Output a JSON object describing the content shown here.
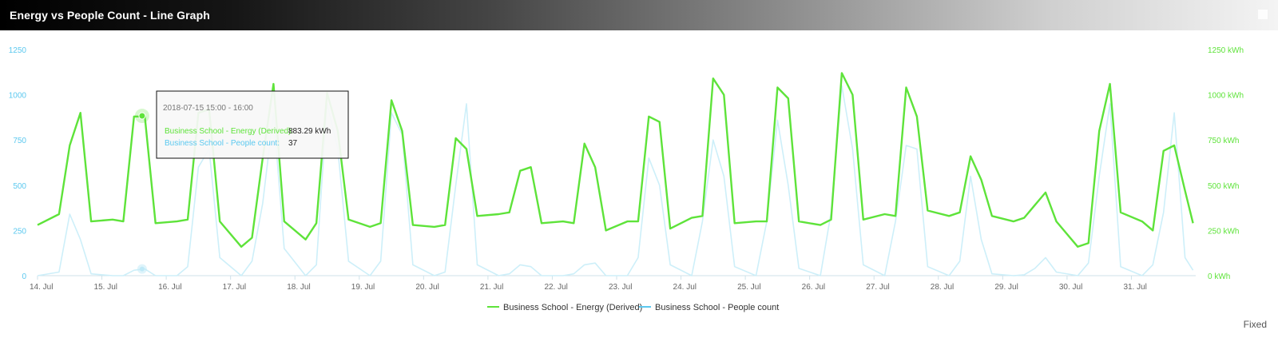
{
  "header": {
    "title": "Energy vs People Count - Line Graph"
  },
  "footer": {
    "mode_label": "Fixed"
  },
  "tooltip": {
    "time": "2018-07-15 15:00 - 16:00",
    "rows": [
      {
        "label": "Business School - Energy (Derived):",
        "value": "883.29 kWh",
        "color": "#5ee33a"
      },
      {
        "label": "Business School - People count:",
        "value": "37",
        "color": "#5bc8ef"
      }
    ]
  },
  "chart_data": {
    "type": "line",
    "x_axis": {
      "range": [
        "2018-07-14 00:00",
        "2018-08-01 00:00"
      ],
      "tick_labels": [
        "14. Jul",
        "15. Jul",
        "16. Jul",
        "17. Jul",
        "18. Jul",
        "19. Jul",
        "20. Jul",
        "21. Jul",
        "22. Jul",
        "23. Jul",
        "24. Jul",
        "25. Jul",
        "26. Jul",
        "27. Jul",
        "28. Jul",
        "29. Jul",
        "30. Jul",
        "31. Jul"
      ]
    },
    "y_axis_left": {
      "range": [
        0,
        1250
      ],
      "tick_labels": [
        "0",
        "250",
        "500",
        "750",
        "1000",
        "1250"
      ],
      "color": "#5bc8ef"
    },
    "y_axis_right": {
      "range": [
        0,
        1250
      ],
      "tick_labels": [
        "0 kWh",
        "250 kWh",
        "500 kWh",
        "750 kWh",
        "1000 kWh",
        "1250 kWh"
      ],
      "color": "#5ee33a"
    },
    "grid": false,
    "legend_position": "bottom-center",
    "series": [
      {
        "name": "Business School - Energy (Derived)",
        "color": "#5ee33a",
        "axis": "right",
        "unit": "kWh",
        "x": [
          "07-14 00:00",
          "07-14 08:00",
          "07-14 12:00",
          "07-14 16:00",
          "07-14 20:00",
          "07-15 04:00",
          "07-15 08:00",
          "07-15 12:00",
          "07-15 16:00",
          "07-15 20:00",
          "07-16 04:00",
          "07-16 08:00",
          "07-16 12:00",
          "07-16 16:00",
          "07-16 20:00",
          "07-17 04:00",
          "07-17 08:00",
          "07-17 12:00",
          "07-17 16:00",
          "07-17 20:00",
          "07-18 04:00",
          "07-18 08:00",
          "07-18 12:00",
          "07-18 16:00",
          "07-18 20:00",
          "07-19 04:00",
          "07-19 08:00",
          "07-19 12:00",
          "07-19 16:00",
          "07-19 20:00",
          "07-20 04:00",
          "07-20 08:00",
          "07-20 12:00",
          "07-20 16:00",
          "07-20 20:00",
          "07-21 04:00",
          "07-21 08:00",
          "07-21 12:00",
          "07-21 16:00",
          "07-21 20:00",
          "07-22 04:00",
          "07-22 08:00",
          "07-22 12:00",
          "07-22 16:00",
          "07-22 20:00",
          "07-23 04:00",
          "07-23 08:00",
          "07-23 12:00",
          "07-23 16:00",
          "07-23 20:00",
          "07-24 04:00",
          "07-24 08:00",
          "07-24 12:00",
          "07-24 16:00",
          "07-24 20:00",
          "07-25 04:00",
          "07-25 08:00",
          "07-25 12:00",
          "07-25 16:00",
          "07-25 20:00",
          "07-26 04:00",
          "07-26 08:00",
          "07-26 12:00",
          "07-26 16:00",
          "07-26 20:00",
          "07-27 04:00",
          "07-27 08:00",
          "07-27 12:00",
          "07-27 16:00",
          "07-27 20:00",
          "07-28 04:00",
          "07-28 08:00",
          "07-28 12:00",
          "07-28 16:00",
          "07-28 20:00",
          "07-29 04:00",
          "07-29 08:00",
          "07-29 12:00",
          "07-29 16:00",
          "07-29 20:00",
          "07-30 04:00",
          "07-30 08:00",
          "07-30 12:00",
          "07-30 16:00",
          "07-30 20:00",
          "07-31 04:00",
          "07-31 08:00",
          "07-31 12:00",
          "07-31 16:00",
          "07-31 20:00",
          "07-31 23:00"
        ],
        "y": [
          280,
          340,
          720,
          900,
          300,
          310,
          300,
          880,
          880,
          290,
          300,
          310,
          900,
          920,
          300,
          160,
          210,
          650,
          1060,
          300,
          200,
          290,
          1010,
          800,
          310,
          270,
          290,
          970,
          800,
          280,
          270,
          280,
          760,
          700,
          330,
          340,
          350,
          580,
          600,
          290,
          300,
          290,
          730,
          600,
          250,
          300,
          300,
          880,
          850,
          260,
          320,
          330,
          1090,
          1000,
          290,
          300,
          300,
          1040,
          980,
          300,
          280,
          310,
          1120,
          1000,
          310,
          340,
          330,
          1040,
          880,
          360,
          330,
          350,
          660,
          530,
          330,
          300,
          320,
          390,
          460,
          300,
          160,
          180,
          800,
          1060,
          350,
          300,
          250,
          690,
          720,
          470,
          290
        ]
      },
      {
        "name": "Business School - People count",
        "color": "#cdeff9",
        "axis": "left",
        "x": [
          "07-14 00:00",
          "07-14 08:00",
          "07-14 12:00",
          "07-14 16:00",
          "07-14 20:00",
          "07-15 04:00",
          "07-15 08:00",
          "07-15 12:00",
          "07-15 16:00",
          "07-15 20:00",
          "07-16 04:00",
          "07-16 08:00",
          "07-16 12:00",
          "07-16 16:00",
          "07-16 20:00",
          "07-17 04:00",
          "07-17 08:00",
          "07-17 12:00",
          "07-17 16:00",
          "07-17 20:00",
          "07-18 04:00",
          "07-18 08:00",
          "07-18 12:00",
          "07-18 16:00",
          "07-18 20:00",
          "07-19 04:00",
          "07-19 08:00",
          "07-19 12:00",
          "07-19 16:00",
          "07-19 20:00",
          "07-20 04:00",
          "07-20 08:00",
          "07-20 12:00",
          "07-20 16:00",
          "07-20 20:00",
          "07-21 04:00",
          "07-21 08:00",
          "07-21 12:00",
          "07-21 16:00",
          "07-21 20:00",
          "07-22 04:00",
          "07-22 08:00",
          "07-22 12:00",
          "07-22 16:00",
          "07-22 20:00",
          "07-23 04:00",
          "07-23 08:00",
          "07-23 12:00",
          "07-23 16:00",
          "07-23 20:00",
          "07-24 04:00",
          "07-24 08:00",
          "07-24 12:00",
          "07-24 16:00",
          "07-24 20:00",
          "07-25 04:00",
          "07-25 08:00",
          "07-25 12:00",
          "07-25 16:00",
          "07-25 20:00",
          "07-26 04:00",
          "07-26 08:00",
          "07-26 12:00",
          "07-26 16:00",
          "07-26 20:00",
          "07-27 04:00",
          "07-27 08:00",
          "07-27 12:00",
          "07-27 16:00",
          "07-27 20:00",
          "07-28 04:00",
          "07-28 08:00",
          "07-28 12:00",
          "07-28 16:00",
          "07-28 20:00",
          "07-29 04:00",
          "07-29 08:00",
          "07-29 12:00",
          "07-29 16:00",
          "07-29 20:00",
          "07-30 04:00",
          "07-30 08:00",
          "07-30 12:00",
          "07-30 16:00",
          "07-30 20:00",
          "07-31 04:00",
          "07-31 08:00",
          "07-31 12:00",
          "07-31 16:00",
          "07-31 20:00",
          "07-31 23:00"
        ],
        "y": [
          0,
          20,
          340,
          200,
          10,
          0,
          0,
          30,
          37,
          0,
          0,
          50,
          600,
          700,
          100,
          0,
          80,
          400,
          900,
          150,
          0,
          60,
          950,
          700,
          80,
          0,
          80,
          900,
          780,
          60,
          0,
          20,
          500,
          950,
          60,
          0,
          10,
          60,
          50,
          0,
          0,
          10,
          60,
          70,
          0,
          0,
          100,
          650,
          500,
          60,
          0,
          300,
          750,
          550,
          50,
          0,
          300,
          860,
          500,
          40,
          0,
          350,
          1050,
          700,
          60,
          0,
          300,
          720,
          700,
          50,
          0,
          80,
          550,
          200,
          10,
          0,
          5,
          40,
          100,
          20,
          0,
          70,
          550,
          950,
          50,
          0,
          60,
          350,
          900,
          100,
          30
        ]
      }
    ]
  }
}
